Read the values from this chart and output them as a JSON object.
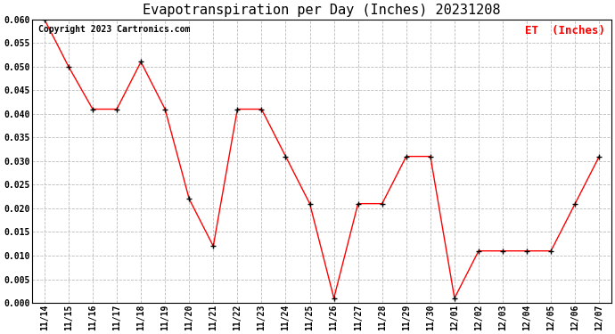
{
  "title": "Evapotranspiration per Day (Inches) 20231208",
  "copyright_text": "Copyright 2023 Cartronics.com",
  "legend_label": "ET  (Inches)",
  "legend_color": "#ff0000",
  "line_color": "#ff0000",
  "marker_color": "#000000",
  "background_color": "#ffffff",
  "grid_color": "#bbbbbb",
  "dates": [
    "11/14",
    "11/15",
    "11/16",
    "11/17",
    "11/18",
    "11/19",
    "11/20",
    "11/21",
    "11/22",
    "11/23",
    "11/24",
    "11/25",
    "11/26",
    "11/27",
    "11/28",
    "11/29",
    "11/30",
    "12/01",
    "12/02",
    "12/03",
    "12/04",
    "12/05",
    "12/06",
    "12/07"
  ],
  "values": [
    0.06,
    0.05,
    0.041,
    0.041,
    0.051,
    0.041,
    0.022,
    0.012,
    0.041,
    0.041,
    0.031,
    0.021,
    0.001,
    0.021,
    0.021,
    0.031,
    0.031,
    0.001,
    0.011,
    0.011,
    0.011,
    0.011,
    0.021,
    0.031
  ],
  "ylim": [
    0.0,
    0.06
  ],
  "yticks": [
    0.0,
    0.005,
    0.01,
    0.015,
    0.02,
    0.025,
    0.03,
    0.035,
    0.04,
    0.045,
    0.05,
    0.055,
    0.06
  ],
  "title_fontsize": 11,
  "tick_fontsize": 7,
  "copyright_fontsize": 7,
  "legend_fontsize": 9
}
